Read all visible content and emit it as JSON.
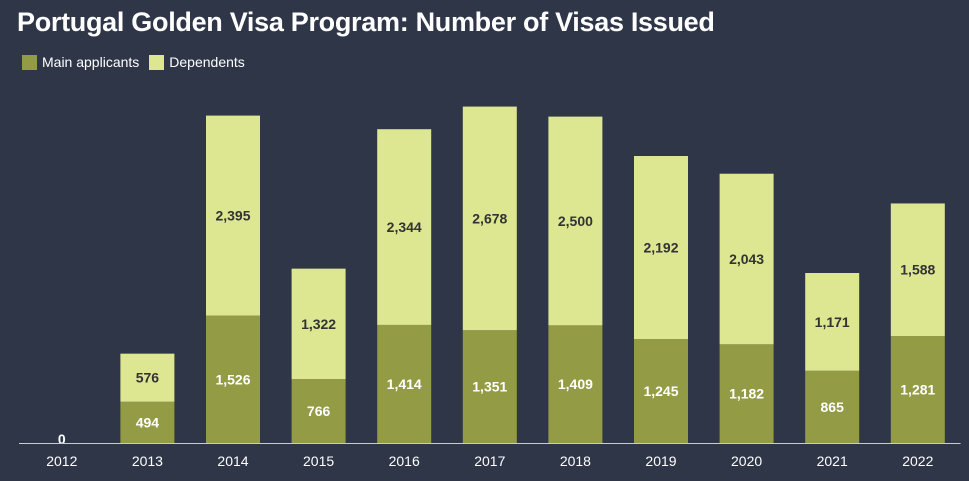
{
  "title": "Portugal Golden Visa Program: Number of Visas Issued",
  "legend": [
    {
      "label": "Main applicants",
      "color": "#939c45"
    },
    {
      "label": "Dependents",
      "color": "#dde691"
    }
  ],
  "colors": {
    "background": "#2e3648",
    "main_applicants": "#939c45",
    "dependents": "#dde691",
    "axis": "#c8ccd4"
  },
  "chart_data": {
    "type": "bar",
    "stacked": true,
    "title": "Portugal Golden Visa Program: Number of Visas Issued",
    "xlabel": "",
    "ylabel": "",
    "categories": [
      "2012",
      "2013",
      "2014",
      "2015",
      "2016",
      "2017",
      "2018",
      "2019",
      "2020",
      "2021",
      "2022"
    ],
    "series": [
      {
        "name": "Main applicants",
        "values": [
          0,
          494,
          1526,
          766,
          1414,
          1351,
          1409,
          1245,
          1182,
          865,
          1281
        ],
        "labels": [
          "0",
          "494",
          "1,526",
          "766",
          "1,414",
          "1,351",
          "1,409",
          "1,245",
          "1,182",
          "865",
          "1,281"
        ]
      },
      {
        "name": "Dependents",
        "values": [
          0,
          576,
          2395,
          1322,
          2344,
          2678,
          2500,
          2192,
          2043,
          1171,
          1588
        ],
        "labels": [
          "",
          "576",
          "2,395",
          "1,322",
          "2,344",
          "2,678",
          "2,500",
          "2,192",
          "2,043",
          "1,171",
          "1,588"
        ]
      }
    ],
    "ylim": [
      0,
      4100
    ],
    "grid": false,
    "legend_position": "top-left"
  }
}
